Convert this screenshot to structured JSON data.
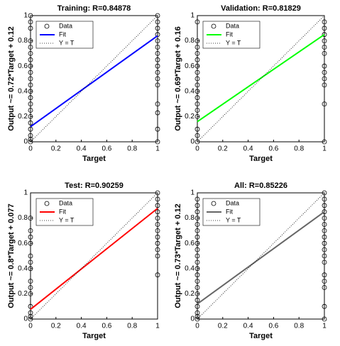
{
  "chart_data": [
    {
      "type": "scatter",
      "title": "Training: R=0.84878",
      "xlabel": "Target",
      "ylabel": "Output ~= 0.72*Target + 0.12",
      "xlim": [
        0,
        1
      ],
      "ylim": [
        0,
        1
      ],
      "xticks": [
        0,
        0.2,
        0.4,
        0.6,
        0.8,
        1
      ],
      "yticks": [
        0,
        0.2,
        0.4,
        0.6,
        0.8,
        1
      ],
      "legend": "upper left",
      "series": [
        {
          "name": "Data",
          "color": "#000000",
          "marker": "circle",
          "x": [
            0,
            0,
            0,
            0,
            0,
            0,
            0,
            0,
            0,
            0,
            0,
            0,
            0,
            0,
            0,
            0,
            0,
            0,
            0,
            0,
            0,
            1,
            1,
            1,
            1,
            1,
            1,
            1,
            1,
            1,
            1,
            1,
            1,
            1,
            1,
            1,
            1
          ],
          "y": [
            0,
            0.02,
            0.05,
            0.1,
            0.15,
            0.2,
            0.25,
            0.3,
            0.35,
            0.4,
            0.45,
            0.5,
            0.55,
            0.6,
            0.65,
            0.7,
            0.75,
            0.8,
            0.9,
            0.95,
            1,
            0,
            0.1,
            0.23,
            0.3,
            0.45,
            0.5,
            0.55,
            0.6,
            0.65,
            0.7,
            0.75,
            0.8,
            0.85,
            0.9,
            0.95,
            1
          ]
        },
        {
          "name": "Fit",
          "color": "#0000ff",
          "x": [
            0,
            1
          ],
          "y": [
            0.12,
            0.84
          ]
        },
        {
          "name": "Y = T",
          "color": "#000000",
          "linestyle": "dotted",
          "x": [
            0,
            1
          ],
          "y": [
            0,
            1
          ]
        }
      ]
    },
    {
      "type": "scatter",
      "title": "Validation: R=0.81829",
      "xlabel": "Target",
      "ylabel": "Output ~= 0.69*Target + 0.16",
      "xlim": [
        0,
        1
      ],
      "ylim": [
        0,
        1
      ],
      "xticks": [
        0,
        0.2,
        0.4,
        0.6,
        0.8,
        1
      ],
      "yticks": [
        0,
        0.2,
        0.4,
        0.6,
        0.8,
        1
      ],
      "legend": "upper left",
      "series": [
        {
          "name": "Data",
          "color": "#000000",
          "marker": "circle",
          "x": [
            0,
            0,
            0,
            0,
            0,
            0,
            0,
            0,
            0,
            0,
            0,
            0,
            0,
            0,
            0,
            0,
            0,
            1,
            1,
            1,
            1,
            1,
            1,
            1,
            1,
            1,
            1,
            1,
            1
          ],
          "y": [
            0,
            0.05,
            0.1,
            0.2,
            0.25,
            0.3,
            0.35,
            0.4,
            0.45,
            0.5,
            0.55,
            0.6,
            0.65,
            0.7,
            0.75,
            0.8,
            0.95,
            0,
            0.3,
            0.45,
            0.5,
            0.55,
            0.6,
            0.7,
            0.75,
            0.8,
            0.85,
            0.9,
            0.95
          ]
        },
        {
          "name": "Fit",
          "color": "#00ff00",
          "x": [
            0,
            1
          ],
          "y": [
            0.16,
            0.85
          ]
        },
        {
          "name": "Y = T",
          "color": "#000000",
          "linestyle": "dotted",
          "x": [
            0,
            1
          ],
          "y": [
            0,
            1
          ]
        }
      ]
    },
    {
      "type": "scatter",
      "title": "Test: R=0.90259",
      "xlabel": "Target",
      "ylabel": "Output ~= 0.8*Target + 0.077",
      "xlim": [
        0,
        1
      ],
      "ylim": [
        0,
        1
      ],
      "xticks": [
        0,
        0.2,
        0.4,
        0.6,
        0.8,
        1
      ],
      "yticks": [
        0,
        0.2,
        0.4,
        0.6,
        0.8,
        1
      ],
      "legend": "upper left",
      "series": [
        {
          "name": "Data",
          "color": "#000000",
          "marker": "circle",
          "x": [
            0,
            0,
            0,
            0,
            0,
            0,
            0,
            0,
            0,
            0,
            0,
            0,
            0,
            0,
            1,
            1,
            1,
            1,
            1,
            1,
            1,
            1,
            1,
            1,
            1,
            1
          ],
          "y": [
            0,
            0.02,
            0.05,
            0.1,
            0.2,
            0.25,
            0.3,
            0.4,
            0.45,
            0.5,
            0.6,
            0.65,
            0.7,
            0.8,
            0.35,
            0.5,
            0.55,
            0.6,
            0.65,
            0.7,
            0.75,
            0.8,
            0.85,
            0.9,
            0.95,
            1
          ]
        },
        {
          "name": "Fit",
          "color": "#ff0000",
          "x": [
            0,
            1
          ],
          "y": [
            0.077,
            0.877
          ]
        },
        {
          "name": "Y = T",
          "color": "#000000",
          "linestyle": "dotted",
          "x": [
            0,
            1
          ],
          "y": [
            0,
            1
          ]
        }
      ]
    },
    {
      "type": "scatter",
      "title": "All: R=0.85226",
      "xlabel": "Target",
      "ylabel": "Output ~= 0.73*Target + 0.12",
      "xlim": [
        0,
        1
      ],
      "ylim": [
        0,
        1
      ],
      "xticks": [
        0,
        0.2,
        0.4,
        0.6,
        0.8,
        1
      ],
      "yticks": [
        0,
        0.2,
        0.4,
        0.6,
        0.8,
        1
      ],
      "legend": "upper left",
      "series": [
        {
          "name": "Data",
          "color": "#000000",
          "marker": "circle",
          "x": [
            0,
            0,
            0,
            0,
            0,
            0,
            0,
            0,
            0,
            0,
            0,
            0,
            0,
            0,
            0,
            0,
            0,
            0,
            0,
            0,
            0,
            1,
            1,
            1,
            1,
            1,
            1,
            1,
            1,
            1,
            1,
            1,
            1,
            1,
            1,
            1,
            1,
            1
          ],
          "y": [
            0,
            0.02,
            0.05,
            0.1,
            0.15,
            0.2,
            0.25,
            0.3,
            0.35,
            0.4,
            0.45,
            0.5,
            0.55,
            0.6,
            0.65,
            0.7,
            0.75,
            0.8,
            0.85,
            0.9,
            0.95,
            0,
            0.1,
            0.25,
            0.3,
            0.35,
            0.45,
            0.5,
            0.55,
            0.6,
            0.65,
            0.7,
            0.75,
            0.8,
            0.85,
            0.9,
            0.95,
            1
          ]
        },
        {
          "name": "Fit",
          "color": "#666666",
          "x": [
            0,
            1
          ],
          "y": [
            0.12,
            0.85
          ]
        },
        {
          "name": "Y = T",
          "color": "#000000",
          "linestyle": "dotted",
          "x": [
            0,
            1
          ],
          "y": [
            0,
            1
          ]
        }
      ]
    }
  ]
}
